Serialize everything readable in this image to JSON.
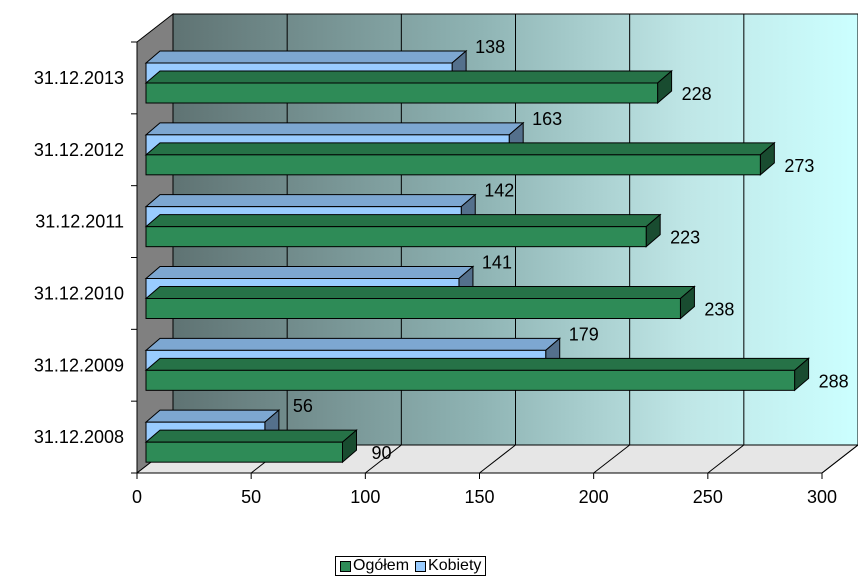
{
  "chart_data": {
    "type": "bar",
    "orientation": "horizontal",
    "categories": [
      "31.12.2008",
      "31.12.2009",
      "31.12.2010",
      "31.12.2011",
      "31.12.2012",
      "31.12.2013"
    ],
    "series": [
      {
        "name": "Ogółem",
        "values": [
          90,
          288,
          238,
          223,
          273,
          228
        ],
        "color": "#2e8b57"
      },
      {
        "name": "Kobiety",
        "values": [
          56,
          179,
          141,
          142,
          163,
          138
        ],
        "color": "#99ccff"
      }
    ],
    "xlim": [
      0,
      300
    ],
    "x_ticks": [
      "0",
      "50",
      "100",
      "150",
      "200",
      "250",
      "300"
    ],
    "grid": true,
    "legend_position": "bottom",
    "title": "",
    "xlabel": "",
    "ylabel": ""
  }
}
